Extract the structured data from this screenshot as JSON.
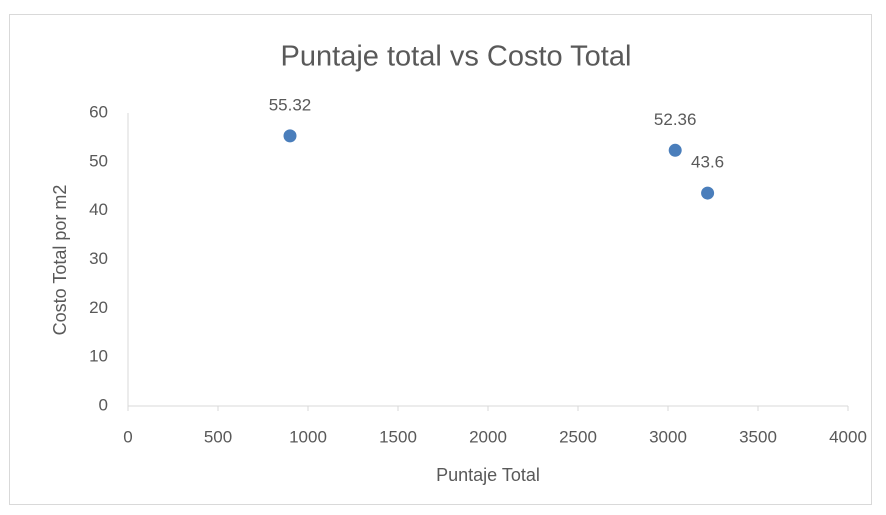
{
  "chart_data": {
    "type": "scatter",
    "title": "Puntaje total vs Costo Total",
    "xlabel": "Puntaje Total",
    "ylabel": "Costo Total por m2",
    "series": [
      {
        "name": "Costo Total por m2",
        "color": "#4a7ebb",
        "x": [
          900,
          3040,
          3220
        ],
        "values": [
          55.32,
          52.36,
          43.6
        ]
      }
    ],
    "xlim": [
      0,
      4000
    ],
    "xticks": [
      0,
      500,
      1000,
      1500,
      2000,
      2500,
      3000,
      3500,
      4000
    ],
    "ylim": [
      0,
      60
    ],
    "yticks": [
      0,
      10,
      20,
      30,
      40,
      50,
      60
    ],
    "grid": false,
    "data_labels": true
  }
}
